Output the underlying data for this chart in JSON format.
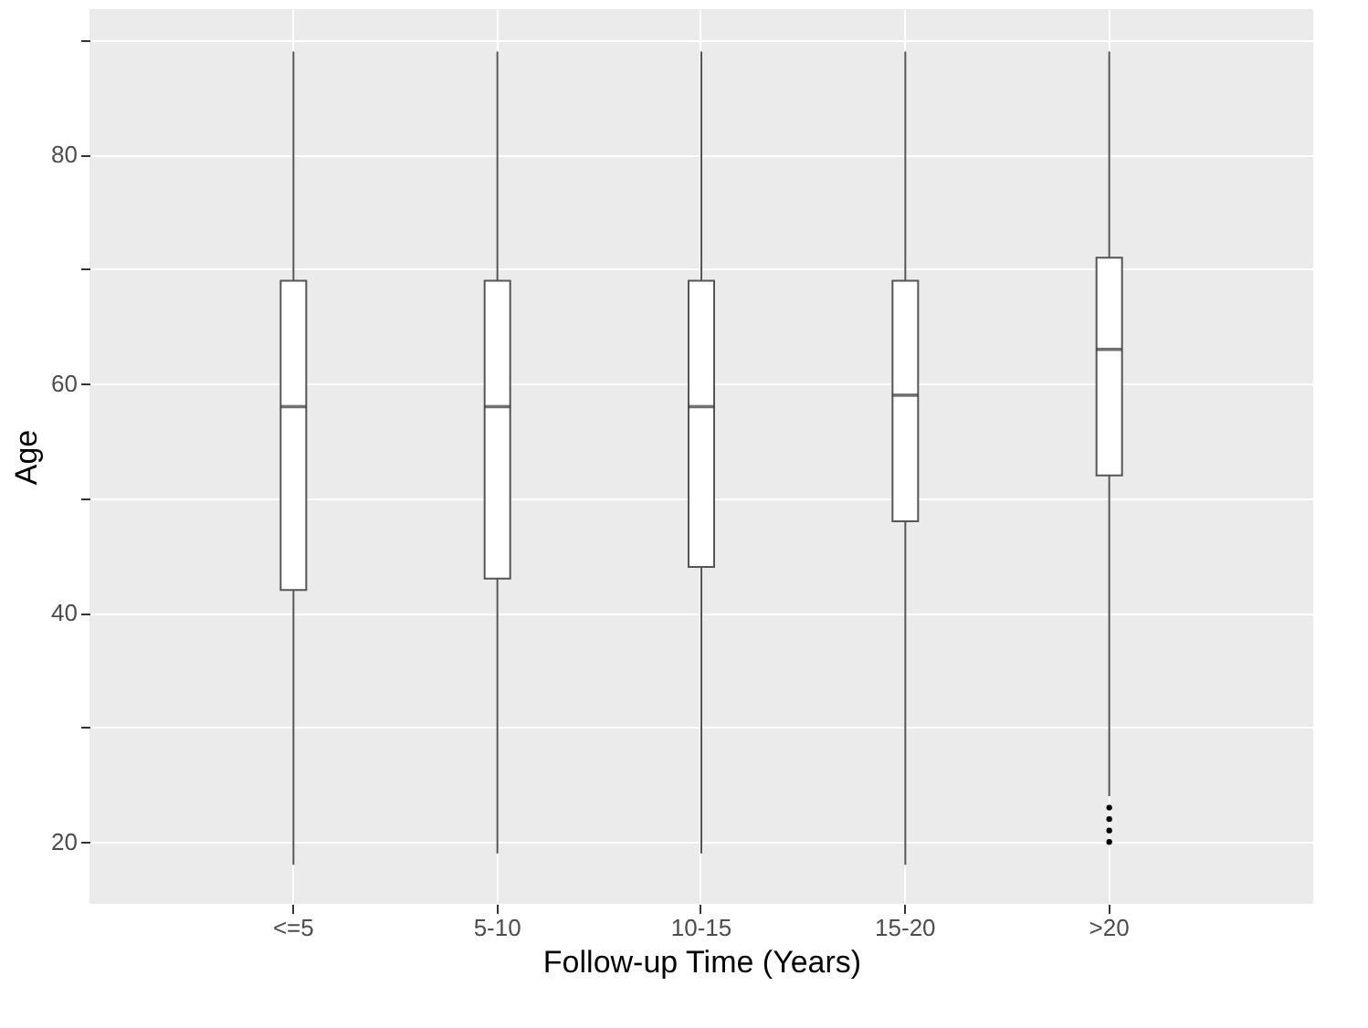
{
  "chart_data": {
    "type": "box",
    "xlabel": "Follow-up Time (Years)",
    "ylabel": "Age",
    "categories": [
      "<=5",
      "5-10",
      "10-15",
      "15-20",
      ">20"
    ],
    "boxes": [
      {
        "low": 18,
        "q1": 42,
        "median": 58,
        "q3": 69,
        "high": 89
      },
      {
        "low": 19,
        "q1": 43,
        "median": 58,
        "q3": 69,
        "high": 89
      },
      {
        "low": 19,
        "q1": 44,
        "median": 58,
        "q3": 69,
        "high": 89
      },
      {
        "low": 18,
        "q1": 48,
        "median": 59,
        "q3": 69,
        "high": 89
      },
      {
        "low": 24,
        "q1": 52,
        "median": 63,
        "q3": 71,
        "high": 89,
        "outliers": [
          23,
          22,
          21,
          20
        ]
      }
    ],
    "ylim": [
      14.6,
      92.7
    ],
    "yticks": [
      20,
      {
        "value": 30,
        "label": null
      },
      40,
      {
        "value": 50,
        "label": null
      },
      60,
      {
        "value": 70,
        "label": null
      },
      80,
      {
        "value": 90,
        "label": null
      }
    ],
    "grid": true
  }
}
